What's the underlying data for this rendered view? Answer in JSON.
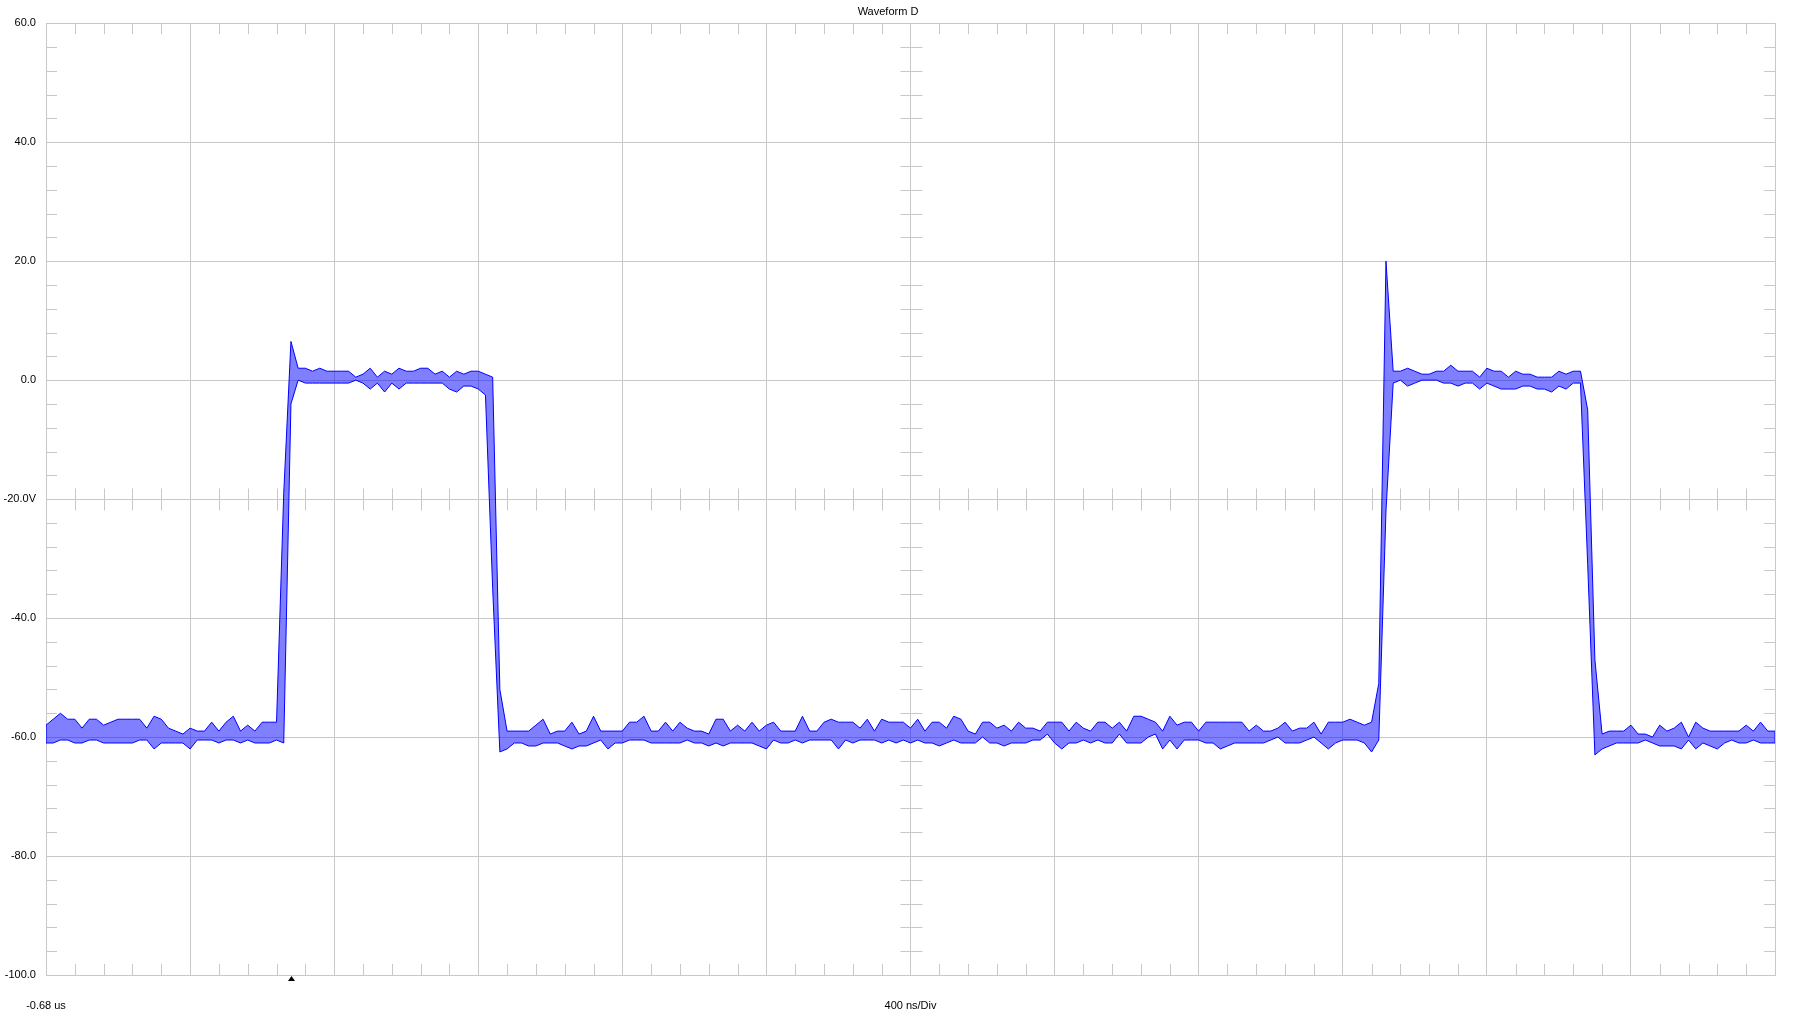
{
  "chart_data": {
    "type": "line",
    "title": "Waveform D",
    "xlabel": "400 ns/Div",
    "annotations": [
      "-0.68 us"
    ],
    "categories": [
      null,
      null,
      null,
      null,
      null,
      null,
      null,
      null,
      null,
      null,
      null,
      null,
      null,
      null,
      null,
      null,
      null,
      null,
      null,
      null,
      null,
      null,
      null,
      null,
      null,
      null,
      null,
      null,
      null,
      null,
      null,
      null,
      null,
      null,
      null,
      null,
      null,
      null,
      null,
      null,
      null,
      null,
      null,
      null,
      null,
      null,
      null,
      null,
      null,
      null,
      null,
      null,
      null,
      null,
      null,
      null,
      null,
      null,
      null,
      null,
      null,
      null,
      null,
      null,
      null,
      null,
      null,
      null,
      null,
      null,
      null,
      null,
      null,
      null,
      null,
      null,
      null,
      null,
      null,
      null,
      null,
      null,
      null,
      null,
      null,
      null,
      null,
      null,
      null,
      null,
      null,
      null,
      null,
      null,
      null,
      null,
      null,
      null,
      null,
      null,
      null,
      null,
      null,
      null,
      null,
      null,
      null,
      null,
      null,
      null,
      null,
      null,
      null,
      null,
      null,
      null,
      null,
      null,
      null,
      null,
      null,
      null,
      null,
      null,
      null,
      null,
      null,
      null,
      null,
      null,
      null,
      null,
      null,
      null,
      null,
      null,
      null,
      null,
      null,
      null,
      null,
      null,
      null,
      null,
      null,
      null,
      null,
      null,
      null,
      null,
      null,
      null,
      null,
      null,
      null,
      null,
      null,
      null,
      null,
      null,
      null,
      null,
      null,
      null,
      null,
      null,
      null,
      null,
      null,
      null,
      null,
      null,
      null,
      null,
      null,
      null,
      null,
      null,
      null,
      null,
      null,
      null,
      null,
      null,
      null,
      null,
      null,
      null,
      null,
      null,
      null,
      null,
      null,
      null,
      null,
      null,
      null,
      null,
      null,
      null,
      null,
      null,
      null,
      null,
      null,
      null,
      null,
      null,
      null,
      null,
      null,
      null,
      null,
      null,
      null,
      null,
      null,
      null,
      null,
      null,
      null,
      null,
      null,
      null,
      null,
      null,
      null,
      null,
      null,
      null,
      null,
      null,
      null,
      null,
      null,
      null,
      null,
      null,
      null,
      null,
      null
    ],
    "series": [
      {
        "color": "#0000ff",
        "values": [
          null,
          null,
          null,
          null,
          null,
          null,
          null,
          null,
          null,
          null,
          null,
          null,
          null,
          null,
          null,
          null,
          null,
          null,
          null,
          null,
          null,
          null,
          null,
          null,
          null,
          null,
          null,
          null,
          null,
          null,
          null,
          null,
          null,
          null,
          null,
          null,
          null,
          null,
          null,
          null,
          null,
          null,
          null,
          null,
          null,
          null,
          null,
          null,
          null,
          null,
          null,
          null,
          null,
          null,
          null,
          null,
          null,
          null,
          null,
          null,
          null,
          null,
          null,
          null,
          null,
          null,
          null,
          null,
          null,
          null,
          null,
          null,
          null,
          null,
          null,
          null,
          null,
          null,
          null,
          null,
          null,
          null,
          null,
          null,
          null,
          null,
          null,
          null,
          null,
          null,
          null,
          null,
          null,
          null,
          null,
          null,
          null,
          null,
          null,
          null,
          null,
          null,
          null,
          null,
          null,
          null,
          null,
          null,
          null,
          null,
          null,
          null,
          null,
          null,
          null,
          null,
          null,
          null,
          null,
          null,
          null,
          null,
          null,
          null,
          null,
          null,
          null,
          null,
          null,
          null,
          null,
          null,
          null,
          null,
          null,
          null,
          null,
          null,
          null,
          null,
          null,
          null,
          null,
          null,
          null,
          null,
          null,
          null,
          null,
          null,
          null,
          null,
          null,
          null,
          null,
          null,
          null,
          null,
          null,
          null,
          null,
          null,
          null,
          null,
          null,
          null,
          null,
          null,
          null,
          null,
          null,
          null,
          null,
          null,
          null,
          null,
          null,
          null,
          null,
          null,
          null,
          null,
          null,
          null,
          null,
          null,
          null,
          null,
          null,
          null,
          null,
          null,
          null,
          null,
          null,
          null,
          null,
          null,
          null,
          null,
          null,
          null,
          null,
          null,
          null,
          null,
          null,
          null,
          null,
          null,
          null,
          null,
          null,
          null,
          null,
          null,
          null,
          null,
          null,
          null,
          null,
          null,
          null,
          null,
          null,
          null,
          null,
          null,
          null,
          null,
          null,
          null,
          null,
          null,
          null,
          null,
          null,
          null,
          null,
          null,
          null
        ],
        "upper": [
          -58,
          -57,
          -56,
          -57,
          -57,
          -58.5,
          -57,
          -57,
          -58,
          -57.5,
          -57,
          -57,
          -57,
          -57,
          -58.5,
          -56.5,
          -57,
          -58.5,
          -59,
          -59.5,
          -58.5,
          -59,
          -59,
          -57.5,
          -59,
          -57.5,
          -56.5,
          -59,
          -58,
          -59,
          -57.5,
          -57.5,
          -57.5,
          -19,
          6.5,
          2,
          2,
          1.5,
          2,
          1.5,
          1.5,
          1.5,
          1.5,
          0.5,
          1,
          2,
          0.5,
          1.5,
          1,
          2,
          1.5,
          1.5,
          2,
          2,
          1,
          1.5,
          0.5,
          1.5,
          1,
          1.5,
          1.5,
          1,
          0.5,
          -52,
          -59,
          -59,
          -59,
          -59,
          -58,
          -57,
          -59.5,
          -59,
          -59,
          -57.5,
          -59.5,
          -59,
          -56.5,
          -59,
          -59,
          -59,
          -59,
          -57.5,
          -57.5,
          -56.5,
          -59,
          -59,
          -57.5,
          -59,
          -57.5,
          -58.5,
          -59,
          -59,
          -59.5,
          -57,
          -57,
          -59,
          -58,
          -59,
          -57.5,
          -59,
          -58,
          -57.5,
          -59,
          -59,
          -59,
          -56.5,
          -59,
          -59,
          -57.5,
          -57,
          -57.5,
          -57.5,
          -57.5,
          -58.5,
          -57,
          -59,
          -57,
          -57.5,
          -57.5,
          -57.5,
          -58.5,
          -57,
          -59,
          -57.5,
          -57.5,
          -58.5,
          -56.5,
          -57,
          -59,
          -59.5,
          -57.5,
          -57.5,
          -58.5,
          -58,
          -59,
          -57.5,
          -58.5,
          -58.5,
          -59,
          -57.5,
          -57.5,
          -57.5,
          -59,
          -57.5,
          -58.5,
          -59,
          -57.5,
          -57.5,
          -58.5,
          -57.5,
          -59,
          -56.5,
          -56.5,
          -57,
          -57.5,
          -59,
          -56.5,
          -58,
          -57.5,
          -57.5,
          -59,
          -57.5,
          -57.5,
          -57.5,
          -57.5,
          -57.5,
          -57.5,
          -59,
          -58,
          -59,
          -59,
          -58.5,
          -57.5,
          -59,
          -58.5,
          -58.5,
          -57.5,
          -59.5,
          -57.5,
          -57.5,
          -57.5,
          -57,
          -57.5,
          -58,
          -57.5,
          -51,
          20,
          1.5,
          1.5,
          2,
          1.5,
          1,
          1,
          1.5,
          1.5,
          2.5,
          1.5,
          1.5,
          1.5,
          0.5,
          2,
          1.5,
          1.5,
          0.5,
          1.5,
          1,
          1,
          0.5,
          0.5,
          0.5,
          1.5,
          1,
          1.5,
          1.5,
          -5,
          -47,
          -59.5,
          -59,
          -59,
          -59,
          -58,
          -59.5,
          -59.5,
          -60,
          -58,
          -59,
          -58.5,
          -57.5,
          -60,
          -57.5,
          -58.5,
          -59,
          -59,
          -59,
          -59,
          -59,
          -58,
          -59,
          -57.5,
          -59,
          -59
        ],
        "lower": [
          -61,
          -61,
          -60.5,
          -60.5,
          -61,
          -61,
          -60.5,
          -60.5,
          -61,
          -61,
          -61,
          -61,
          -61,
          -60.5,
          -60.5,
          -62,
          -61,
          -61,
          -61,
          -61,
          -62,
          -60.5,
          -60.5,
          -60.5,
          -61,
          -60.5,
          -60.5,
          -61,
          -60.5,
          -61,
          -61,
          -61,
          -60.5,
          -61,
          -4,
          0,
          -0.5,
          -0.5,
          -0.5,
          -0.5,
          -0.5,
          -0.5,
          -0.5,
          0,
          -0.5,
          -1.5,
          -0.5,
          -2,
          -0.5,
          -1.5,
          -0.5,
          -0.5,
          -0.5,
          -0.5,
          -0.5,
          -0.5,
          -1.5,
          -2,
          -1,
          -1,
          -1.5,
          -2.5,
          -35,
          -62.5,
          -62,
          -61,
          -61,
          -61.5,
          -61.5,
          -61,
          -61,
          -61,
          -61.5,
          -62,
          -61.5,
          -61.5,
          -61,
          -60.5,
          -62,
          -61,
          -61,
          -60.5,
          -60.5,
          -60.5,
          -61,
          -61,
          -61,
          -61,
          -61,
          -60.5,
          -61,
          -61,
          -61.5,
          -61,
          -61.5,
          -61,
          -61,
          -61,
          -61,
          -61.5,
          -62,
          -60.5,
          -61,
          -61,
          -60.5,
          -61,
          -60.5,
          -60.5,
          -60.5,
          -60.5,
          -62,
          -60.5,
          -61,
          -60.5,
          -60.5,
          -60.5,
          -61,
          -60.5,
          -61,
          -60.5,
          -61,
          -60.5,
          -61,
          -61,
          -61.5,
          -61,
          -60.5,
          -61,
          -61,
          -61,
          -60,
          -61,
          -61,
          -61.5,
          -61,
          -61,
          -61,
          -60.5,
          -60.5,
          -59.5,
          -61,
          -62,
          -61,
          -61,
          -60.5,
          -61,
          -60.5,
          -61,
          -61,
          -59.5,
          -61,
          -61,
          -61,
          -60,
          -59.5,
          -62,
          -60.5,
          -62,
          -60.5,
          -60.5,
          -60.5,
          -61,
          -61,
          -62,
          -61.5,
          -61,
          -61,
          -61,
          -61,
          -61,
          -60.5,
          -60,
          -61,
          -61,
          -61,
          -60.5,
          -60,
          -61,
          -62,
          -61,
          -60.5,
          -60.5,
          -60.5,
          -61,
          -62.5,
          -60.5,
          -22,
          -0.5,
          0,
          -1,
          -0.5,
          0,
          0,
          0,
          -0.5,
          -0.5,
          -1,
          -0.5,
          -0.5,
          -1.5,
          -0.5,
          -1,
          -1.5,
          -1.5,
          -1.5,
          -1,
          -1,
          -1.5,
          -1.5,
          -2,
          -1,
          -1.5,
          -0.5,
          -0.5,
          -31,
          -63,
          -62,
          -61.5,
          -61,
          -61,
          -61,
          -61,
          -60.5,
          -61,
          -61.5,
          -61.5,
          -61.5,
          -62,
          -60.5,
          -62,
          -61,
          -61.5,
          -62,
          -61,
          -60.5,
          -61,
          -61,
          -60.5,
          -61,
          -61,
          -61
        ]
      }
    ],
    "ylim": [
      -100,
      60
    ],
    "yticks": [
      {
        "value": 60,
        "label": "60.0"
      },
      {
        "value": 40,
        "label": "40.0"
      },
      {
        "value": 20,
        "label": "20.0"
      },
      {
        "value": 0,
        "label": "0.0"
      },
      {
        "value": -20,
        "label": "-20.0V"
      },
      {
        "value": -40,
        "label": "-40.0"
      },
      {
        "value": -60,
        "label": "-60.0"
      },
      {
        "value": -80,
        "label": "-80.0"
      },
      {
        "value": -100,
        "label": "-100.0"
      }
    ],
    "grid": true
  }
}
